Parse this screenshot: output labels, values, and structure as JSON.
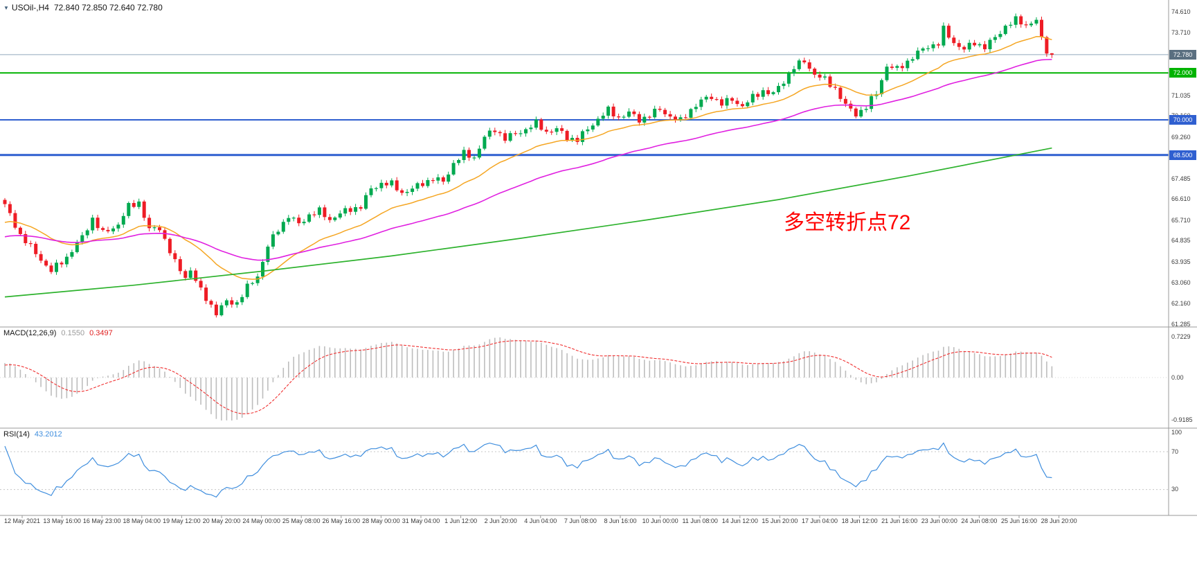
{
  "window": {
    "collapse_glyph": "▼",
    "symbol_title": "USOil-,H4",
    "ohlc_text": "72.840 72.850 72.640 72.780"
  },
  "chart_data": {
    "type": "candlestick",
    "symbol": "USOil-",
    "timeframe": "H4",
    "current_bar": {
      "open": 72.84,
      "high": 72.85,
      "low": 72.64,
      "close": 72.78
    },
    "annotation": {
      "text": "多空转折点72",
      "color": "#ff0000"
    },
    "up_color": "#00a94f",
    "down_color": "#ee1c25",
    "price_axis": {
      "min": 61.285,
      "max": 74.61,
      "labels": [
        "74.610",
        "73.710",
        "71.035",
        "70.160",
        "69.260",
        "67.485",
        "66.610",
        "65.710",
        "64.835",
        "63.935",
        "63.060",
        "62.160",
        "61.285"
      ]
    },
    "levels": [
      {
        "label": "72.780",
        "price": 72.78,
        "line_color": "#90a8bc",
        "box_color": "#5a6f80",
        "line_width": 1
      },
      {
        "label": "72.000",
        "price": 72.0,
        "line_color": "#00b300",
        "box_color": "#00b300",
        "line_width": 2
      },
      {
        "label": "70.000",
        "price": 70.0,
        "line_color": "#2f5fd0",
        "box_color": "#2f5fd0",
        "line_width": 2
      },
      {
        "label": "68.500",
        "price": 68.5,
        "line_color": "#2f5fd0",
        "box_color": "#2f5fd0",
        "line_width": 3
      }
    ],
    "time_labels": [
      "12 May 2021",
      "13 May 16:00",
      "16 May 23:00",
      "18 May 04:00",
      "19 May 12:00",
      "20 May 20:00",
      "24 May 00:00",
      "25 May 08:00",
      "26 May 16:00",
      "28 May 00:00",
      "31 May 04:00",
      "1 Jun 12:00",
      "2 Jun 20:00",
      "4 Jun 04:00",
      "7 Jun 08:00",
      "8 Jun 16:00",
      "10 Jun 00:00",
      "11 Jun 08:00",
      "14 Jun 12:00",
      "15 Jun 20:00",
      "17 Jun 04:00",
      "18 Jun 12:00",
      "21 Jun 16:00",
      "23 Jun 00:00",
      "24 Jun 08:00",
      "25 Jun 16:00",
      "28 Jun 20:00"
    ],
    "price_anchors": [
      [
        0,
        66.35
      ],
      [
        3,
        65.1
      ],
      [
        6,
        64.3
      ],
      [
        9,
        63.55
      ],
      [
        12,
        64.15
      ],
      [
        15,
        65.0
      ],
      [
        17,
        65.8
      ],
      [
        19,
        65.15
      ],
      [
        22,
        65.55
      ],
      [
        24,
        66.3
      ],
      [
        26,
        66.5
      ],
      [
        28,
        65.3
      ],
      [
        30,
        65.4
      ],
      [
        33,
        63.9
      ],
      [
        35,
        63.3
      ],
      [
        36,
        63.6
      ],
      [
        38,
        62.7
      ],
      [
        40,
        62.1
      ],
      [
        41,
        61.75
      ],
      [
        43,
        62.25
      ],
      [
        45,
        62.2
      ],
      [
        47,
        62.85
      ],
      [
        49,
        63.35
      ],
      [
        51,
        64.6
      ],
      [
        53,
        65.35
      ],
      [
        55,
        65.9
      ],
      [
        57,
        65.55
      ],
      [
        59,
        65.95
      ],
      [
        61,
        66.1
      ],
      [
        63,
        65.75
      ],
      [
        65,
        66.0
      ],
      [
        67,
        66.2
      ],
      [
        69,
        66.3
      ],
      [
        71,
        67.05
      ],
      [
        73,
        67.3
      ],
      [
        75,
        67.25
      ],
      [
        77,
        66.9
      ],
      [
        79,
        67.05
      ],
      [
        81,
        67.3
      ],
      [
        83,
        67.5
      ],
      [
        85,
        67.35
      ],
      [
        87,
        68.15
      ],
      [
        89,
        68.55
      ],
      [
        91,
        68.4
      ],
      [
        93,
        69.25
      ],
      [
        95,
        69.6
      ],
      [
        97,
        69.2
      ],
      [
        99,
        69.4
      ],
      [
        101,
        69.6
      ],
      [
        103,
        69.85
      ],
      [
        105,
        69.5
      ],
      [
        107,
        69.6
      ],
      [
        109,
        69.25
      ],
      [
        111,
        69.15
      ],
      [
        113,
        69.6
      ],
      [
        115,
        70.05
      ],
      [
        117,
        70.4
      ],
      [
        119,
        70.1
      ],
      [
        121,
        70.3
      ],
      [
        123,
        70.0
      ],
      [
        125,
        70.2
      ],
      [
        127,
        70.45
      ],
      [
        129,
        70.15
      ],
      [
        131,
        69.95
      ],
      [
        133,
        70.45
      ],
      [
        135,
        70.8
      ],
      [
        137,
        71.0
      ],
      [
        139,
        70.7
      ],
      [
        141,
        70.85
      ],
      [
        143,
        70.6
      ],
      [
        145,
        70.95
      ],
      [
        147,
        71.25
      ],
      [
        149,
        71.1
      ],
      [
        151,
        71.65
      ],
      [
        153,
        72.25
      ],
      [
        155,
        72.5
      ],
      [
        157,
        71.95
      ],
      [
        159,
        71.7
      ],
      [
        161,
        71.35
      ],
      [
        163,
        70.6
      ],
      [
        165,
        70.25
      ],
      [
        167,
        70.55
      ],
      [
        169,
        71.15
      ],
      [
        171,
        72.3
      ],
      [
        173,
        72.15
      ],
      [
        175,
        72.5
      ],
      [
        177,
        72.85
      ],
      [
        179,
        73.15
      ],
      [
        181,
        73.25
      ],
      [
        182,
        73.85
      ],
      [
        184,
        73.3
      ],
      [
        186,
        73.0
      ],
      [
        188,
        73.3
      ],
      [
        190,
        73.1
      ],
      [
        192,
        73.5
      ],
      [
        194,
        74.0
      ],
      [
        196,
        74.25
      ],
      [
        198,
        74.05
      ],
      [
        200,
        74.25
      ],
      [
        201,
        73.4
      ],
      [
        202,
        72.95
      ],
      [
        203,
        72.78
      ]
    ],
    "noise": {
      "a1": 0.1,
      "f1": 2.7,
      "a2": 0.07,
      "f2": 1.35
    },
    "warmup": {
      "bars": 200,
      "start": 59.0,
      "end": 65.9,
      "wiggle": 0.25,
      "wiggle_freq": 0.7
    },
    "moving_averages": {
      "fast": {
        "period": 21,
        "color": "#f5a623"
      },
      "mid": {
        "period": 55,
        "color": "#e020e0"
      },
      "slow_color": "#2db22d",
      "slow_points": [
        [
          0,
          62.45
        ],
        [
          25,
          62.95
        ],
        [
          50,
          63.55
        ],
        [
          75,
          64.2
        ],
        [
          100,
          64.95
        ],
        [
          125,
          65.75
        ],
        [
          150,
          66.6
        ],
        [
          175,
          67.6
        ],
        [
          203,
          68.8
        ]
      ]
    },
    "macd": {
      "label": "MACD(12,26,9)",
      "value_main": "0.1550",
      "value_signal": "0.3497",
      "axis_labels": [
        "0.7229",
        "0.00",
        "-0.9185"
      ],
      "hist_color": "#bdbdbd",
      "signal_color": "#f03030"
    },
    "rsi": {
      "label": "RSI(14)",
      "value": "43.2012",
      "axis_labels": [
        "100",
        "70",
        "30"
      ],
      "line_color": "#3f8ede",
      "level_color": "#c4c4c4"
    }
  }
}
